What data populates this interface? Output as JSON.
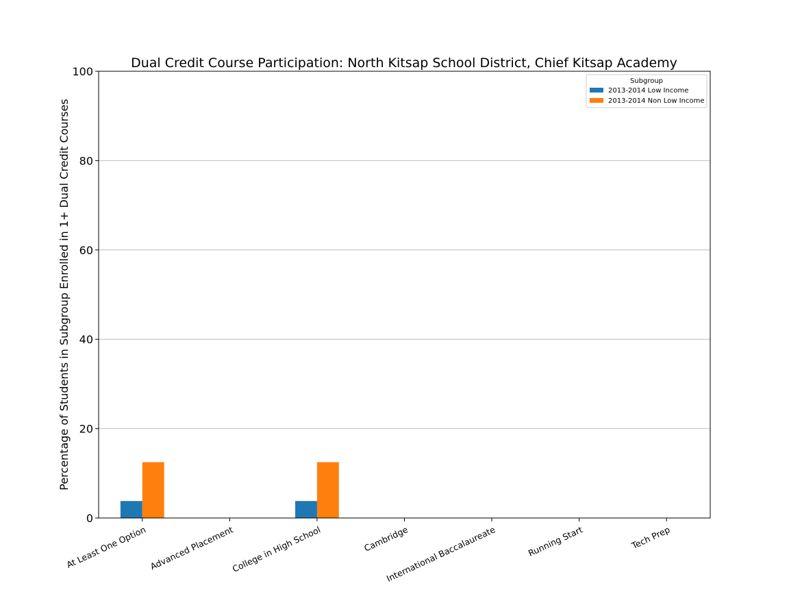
{
  "chart_data": {
    "type": "bar",
    "title": "Dual Credit Course Participation: North Kitsap School District, Chief Kitsap Academy",
    "xlabel": "",
    "ylabel": "Percentage of Students in Subgroup Enrolled in 1+ Dual Credit Courses",
    "ylim": [
      0,
      100
    ],
    "yticks": [
      0,
      20,
      40,
      60,
      80,
      100
    ],
    "grid": "horizontal",
    "legend": {
      "title": "Subgroup",
      "placement": "top-right"
    },
    "categories": [
      "At Least One Option",
      "Advanced Placement",
      "College in High School",
      "Cambridge",
      "International Baccalaureate",
      "Running Start",
      "Tech Prep"
    ],
    "series": [
      {
        "name": "2013-2014 Low Income",
        "color": "#1f77b4",
        "values": [
          3.8,
          0,
          3.8,
          0,
          0,
          0,
          0
        ]
      },
      {
        "name": "2013-2014 Non Low Income",
        "color": "#ff7f0e",
        "values": [
          12.5,
          0,
          12.5,
          0,
          0,
          0,
          0
        ]
      }
    ]
  }
}
